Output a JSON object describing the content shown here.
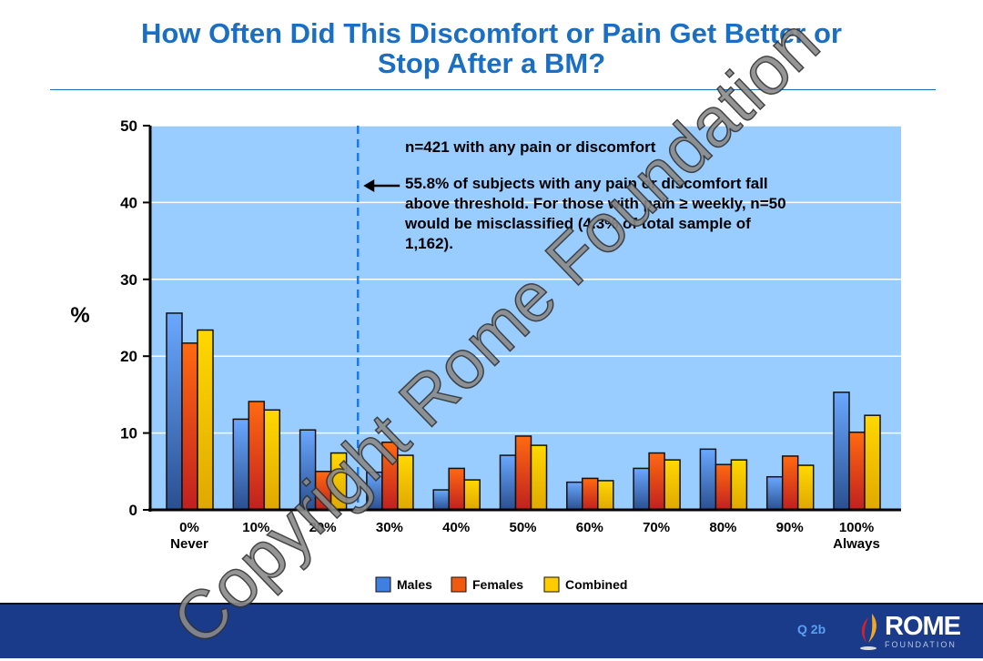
{
  "title_line1": "How Often Did This Discomfort or Pain Get Better or",
  "title_line2": "Stop After a BM?",
  "chart_data": {
    "type": "bar",
    "title": "How Often Did This Discomfort or Pain Get Better or Stop After a BM?",
    "ylabel": "%",
    "ylim": [
      0,
      50
    ],
    "yticks": [
      "0",
      "10",
      "20",
      "30",
      "40",
      "50"
    ],
    "grid": true,
    "categories": [
      "0%|Never",
      "10%",
      "20%",
      "30%",
      "40%",
      "50%",
      "60%",
      "70%",
      "80%",
      "90%",
      "100%|Always"
    ],
    "series": [
      {
        "name": "Males",
        "color": "#3f7fe0",
        "values": [
          25.6,
          11.8,
          10.4,
          4.9,
          2.6,
          7.1,
          3.6,
          5.4,
          7.9,
          4.3,
          15.3
        ]
      },
      {
        "name": "Females",
        "color": "#f05a10",
        "values": [
          21.7,
          14.1,
          5.0,
          8.8,
          5.4,
          9.6,
          4.1,
          7.4,
          5.9,
          7.0,
          10.1
        ]
      },
      {
        "name": "Combined",
        "color": "#ffcc00",
        "values": [
          23.4,
          13.0,
          7.4,
          7.1,
          3.9,
          8.4,
          3.8,
          6.5,
          6.5,
          5.8,
          12.3
        ]
      }
    ],
    "threshold_category_between": [
      "20%",
      "30%"
    ],
    "legend_position": "bottom",
    "annotations": [
      "n=421 with any pain or discomfort",
      "55.8% of subjects with any pain or discomfort fall",
      "above threshold. For those with pain ≥ weekly, n=50",
      "would be misclassified (4.3% of total sample of",
      "1,162)."
    ]
  },
  "footer": {
    "slide_label": "Q 2b",
    "logo_main": "ROME",
    "logo_sub": "FOUNDATION"
  },
  "watermark": "Copyright Rome Foundation",
  "colors": {
    "title": "#1a6fc4",
    "plot_bg": "#99ccff",
    "footer_bg": "#1a3a8a"
  }
}
